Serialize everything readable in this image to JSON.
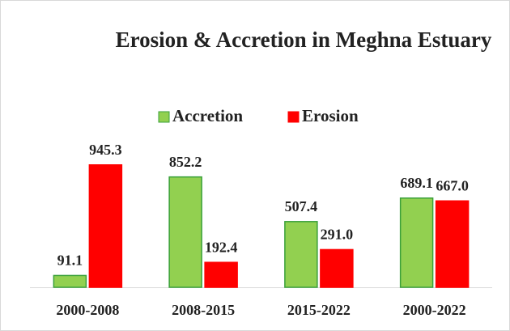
{
  "chart_data": {
    "type": "bar",
    "title": "Erosion & Accretion in Meghna Estuary",
    "categories": [
      "2000-2008",
      "2008-2015",
      "2015-2022",
      "2000-2022"
    ],
    "series": [
      {
        "name": "Accretion",
        "color": "#92d050",
        "values": [
          91.1,
          852.2,
          507.4,
          689.1
        ],
        "value_labels": [
          "91.1",
          "852.2",
          "507.4",
          "689.1"
        ]
      },
      {
        "name": "Erosion",
        "color": "#ff0000",
        "values": [
          945.3,
          192.4,
          291.0,
          667.0
        ],
        "value_labels": [
          "945.3",
          "192.4",
          "291.0",
          "667.0"
        ]
      }
    ],
    "ylim": [
      0,
      1000
    ]
  }
}
